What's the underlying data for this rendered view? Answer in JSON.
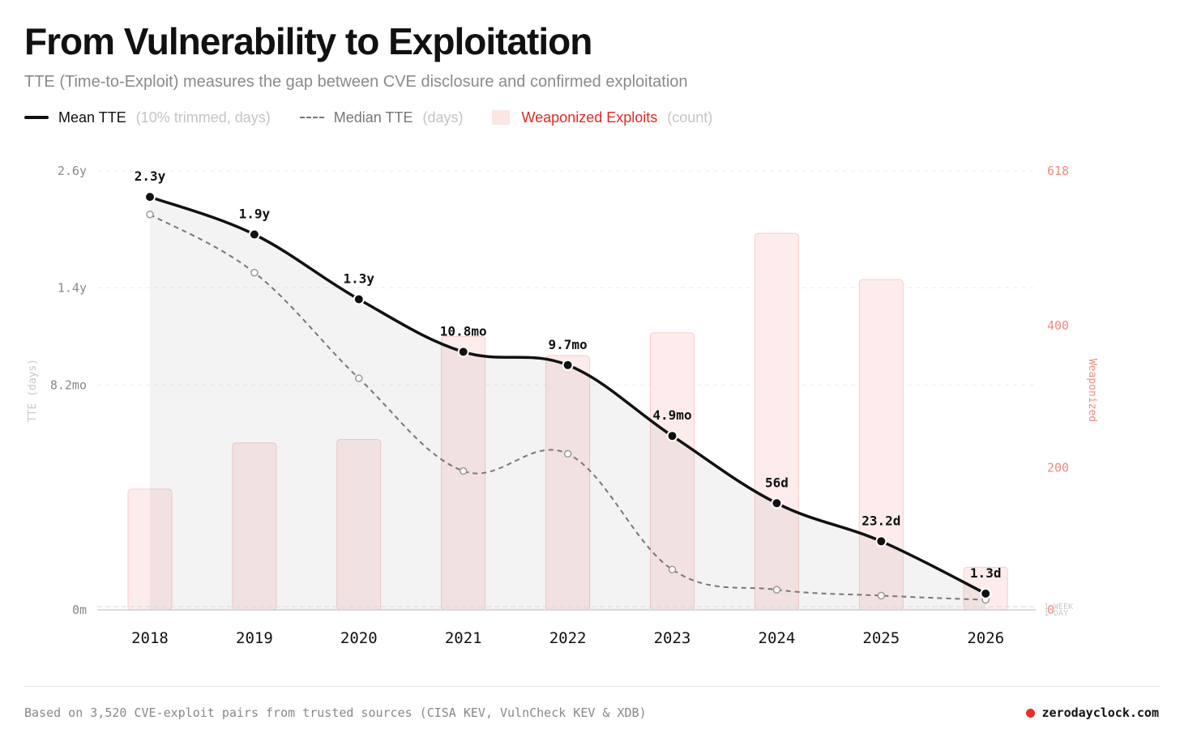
{
  "header": {
    "title": "From Vulnerability to Exploitation",
    "subtitle": "TTE (Time-to-Exploit) measures the gap between CVE disclosure and confirmed exploitation"
  },
  "legend": {
    "mean_label": "Mean TTE",
    "mean_note": "(10% trimmed, days)",
    "median_label": "Median TTE",
    "median_note": "(days)",
    "exploits_label": "Weaponized Exploits",
    "exploits_note": "(count)"
  },
  "footer": {
    "source": "Based on 3,520 CVE-exploit pairs from trusted sources (CISA KEV, VulnCheck KEV & XDB)",
    "brand": "zerodayclock.com"
  },
  "colors": {
    "mean": "#111111",
    "median": "#777777",
    "bar_fill": "#fdeceb",
    "bar_stroke": "#f8cdc9",
    "right_axis": "#f08a80",
    "brand_dot": "#ee2b2b"
  },
  "chart_data": {
    "type": "line",
    "x": [
      "2018",
      "2019",
      "2020",
      "2021",
      "2022",
      "2023",
      "2024",
      "2025",
      "2026"
    ],
    "series": [
      {
        "name": "Mean TTE",
        "unit": "days",
        "values": [
          840,
          694,
          475,
          328,
          295,
          149,
          56,
          23.2,
          1.3
        ],
        "point_labels": [
          "2.3y",
          "1.9y",
          "1.3y",
          "10.8mo",
          "9.7mo",
          "4.9mo",
          "56d",
          "23.2d",
          "1.3d"
        ]
      },
      {
        "name": "Median TTE",
        "unit": "days",
        "values": [
          770,
          560,
          264,
          95,
          120,
          8,
          2,
          1,
          0.5
        ]
      },
      {
        "name": "Weaponized Exploits",
        "unit": "count",
        "type": "bar",
        "axis": "right",
        "values": [
          170,
          235,
          240,
          385,
          358,
          390,
          530,
          465,
          60
        ]
      }
    ],
    "y_left": {
      "label": "TTE (days)",
      "ticks": [
        "0m",
        "8.2mo",
        "1.4y",
        "2.6y"
      ],
      "tick_values": [
        0,
        249,
        511,
        949
      ],
      "range": [
        0,
        949
      ],
      "scale": "sqrt"
    },
    "y_right": {
      "label": "Weaponized",
      "ticks": [
        "0",
        "200",
        "400",
        "618"
      ],
      "tick_values": [
        0,
        200,
        400,
        618
      ],
      "range": [
        0,
        618
      ]
    },
    "reference_lines": [
      "1 WEEK",
      "1 DAY"
    ],
    "grid": true
  }
}
